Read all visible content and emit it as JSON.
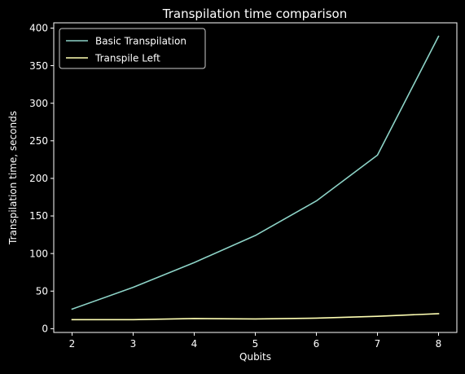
{
  "chart_data": {
    "type": "line",
    "title": "Transpilation time comparison",
    "xlabel": "Qubits",
    "ylabel": "Transpilation time, seconds",
    "x": [
      2,
      3,
      4,
      5,
      6,
      7,
      8
    ],
    "xlim": [
      1.7,
      8.3
    ],
    "ylim": [
      -5,
      407
    ],
    "xticks": [
      2,
      3,
      4,
      5,
      6,
      7,
      8
    ],
    "yticks": [
      0,
      50,
      100,
      150,
      200,
      250,
      300,
      350,
      400
    ],
    "grid": false,
    "legend_position": "top-left",
    "background": "#000000",
    "foreground": "#ffffff",
    "series": [
      {
        "name": "Basic Transpilation",
        "color": "#8dd3c7",
        "values": [
          26,
          55,
          88,
          124,
          170,
          231,
          389
        ]
      },
      {
        "name": "Transpile Left",
        "color": "#ffffb3",
        "values": [
          12,
          12,
          13.5,
          13,
          14,
          16.5,
          20
        ]
      }
    ]
  }
}
